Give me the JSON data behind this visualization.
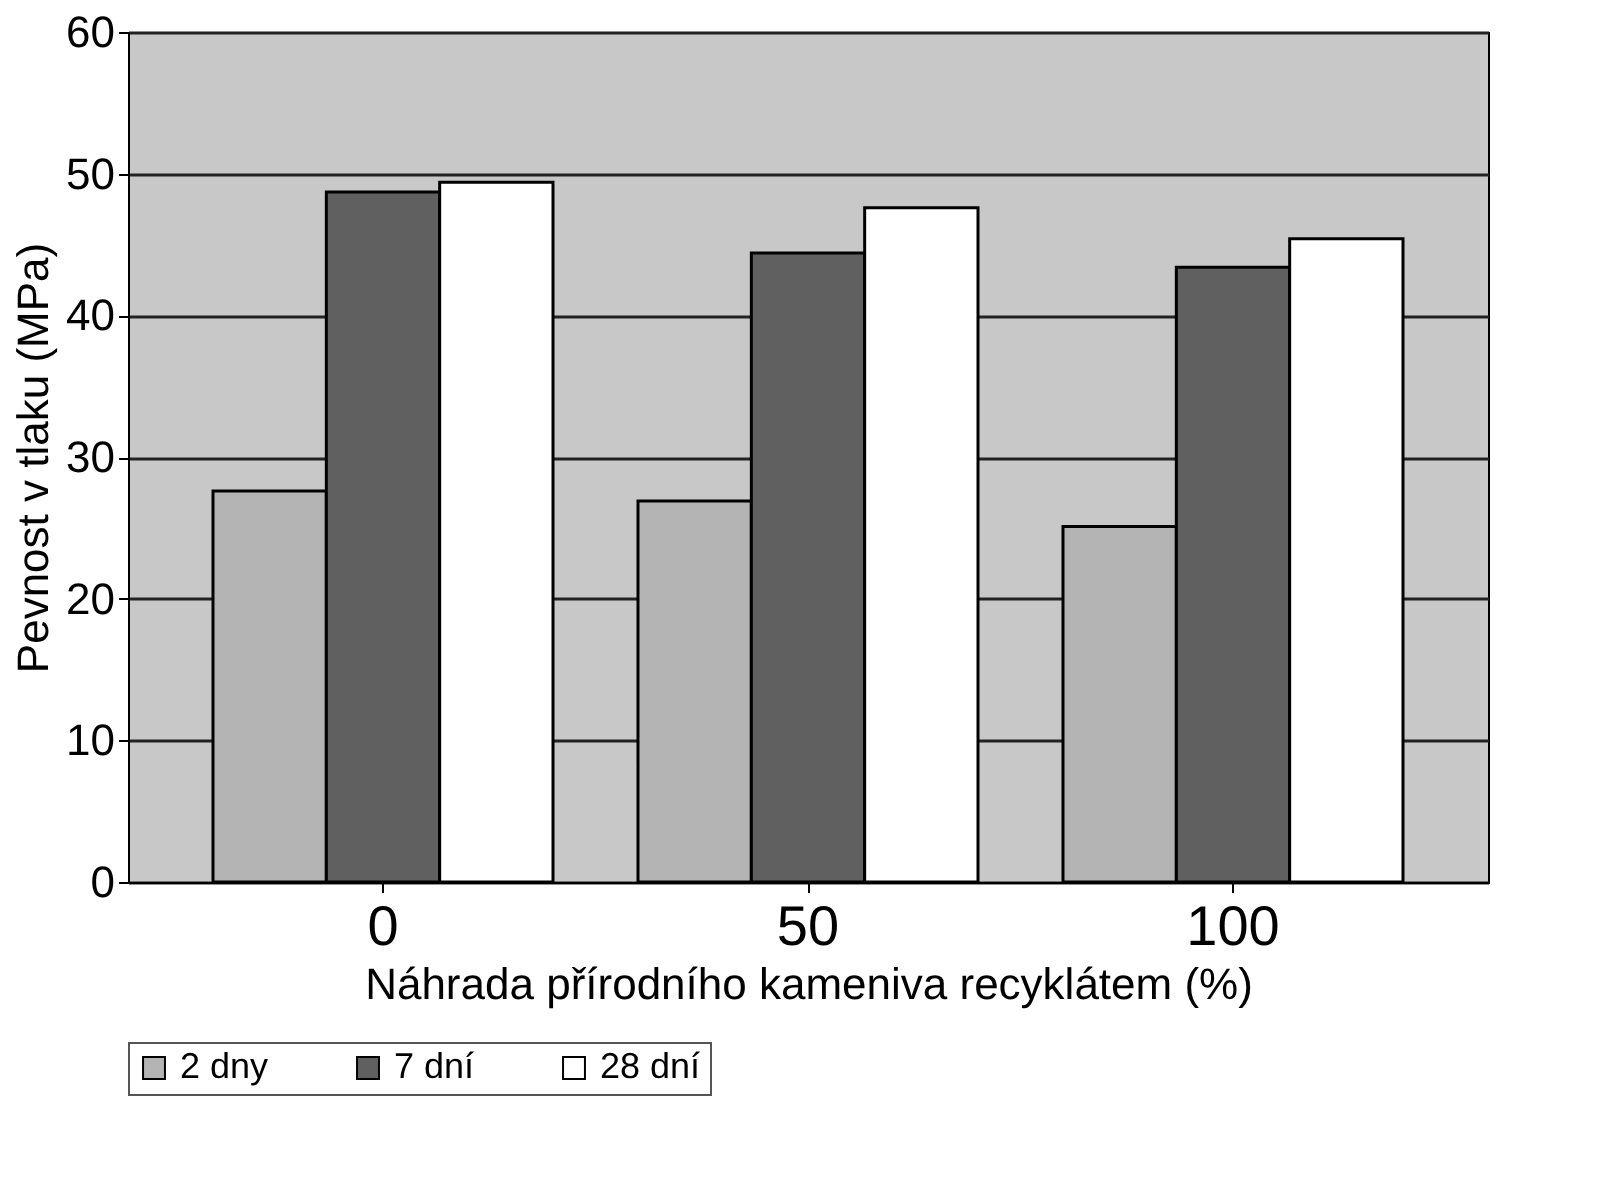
{
  "chart_data": {
    "type": "bar",
    "xlabel": "Náhrada přírodního kameniva recyklátem (%)",
    "ylabel": "Pevnost v tlaku (MPa)",
    "categories": [
      "0",
      "50",
      "100"
    ],
    "series": [
      {
        "name": "2 dny",
        "color": "#b4b4b4",
        "values": [
          27.6,
          26.9,
          25.1
        ]
      },
      {
        "name": "7 dní",
        "color": "#606060",
        "values": [
          48.7,
          44.4,
          43.4
        ]
      },
      {
        "name": "28 dní",
        "color": "#ffffff",
        "values": [
          49.4,
          47.6,
          45.4
        ]
      }
    ],
    "ylim": [
      0,
      60
    ],
    "yticks": [
      0,
      10,
      20,
      30,
      40,
      50,
      60
    ],
    "grid": "y",
    "legend": "bottom"
  }
}
